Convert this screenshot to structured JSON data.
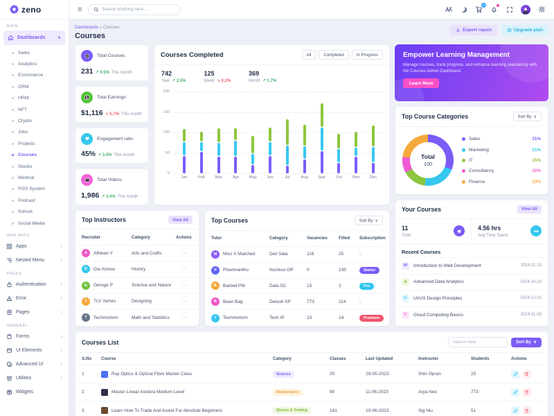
{
  "icons": {
    "trend_up": "↗",
    "trend_down": "↘",
    "chevron_down": "∨",
    "chevron_right": "›",
    "breadcrumb_sep": "»",
    "ellipsis": "⋯",
    "hamburger": "≡"
  },
  "colors": {
    "accent_purple": "#7b5bf5",
    "accent_cyan": "#35c7ee",
    "accent_green": "#8ec63f",
    "accent_pink": "#f05ad4",
    "accent_orange": "#f6a93b",
    "accent_red": "#f1556c",
    "trend_green": "#42b36a",
    "trend_red": "#ef5e6f",
    "cart_badge_blue": "#3aa0f5"
  },
  "brand": {
    "name": "zeno"
  },
  "header": {
    "search_placeholder": "Search anything here ...",
    "cart_badge": "5"
  },
  "page": {
    "breadcrumb_root": "Dashboards",
    "breadcrumb_current": "Courses",
    "title": "Courses",
    "export_button": "Export report",
    "upgrade_button": "Upgrade plan"
  },
  "sidebar": {
    "sections": {
      "main": "MAIN",
      "web_apps": "WEB APPS",
      "pages": "PAGES",
      "general": "GENERAL"
    },
    "dashboards": "Dashboards",
    "sub_items": [
      {
        "label": "Sales"
      },
      {
        "label": "Analytics"
      },
      {
        "label": "Ecommerce"
      },
      {
        "label": "CRM"
      },
      {
        "label": "HRM"
      },
      {
        "label": "NFT"
      },
      {
        "label": "Crypto"
      },
      {
        "label": "Jobs"
      },
      {
        "label": "Projects"
      },
      {
        "label": "Courses"
      },
      {
        "label": "Stocks"
      },
      {
        "label": "Medical"
      },
      {
        "label": "POS System"
      },
      {
        "label": "Podcast"
      },
      {
        "label": "School"
      },
      {
        "label": "Social Media"
      }
    ],
    "web_apps_items": [
      {
        "label": "Apps"
      },
      {
        "label": "Nested Menu"
      }
    ],
    "pages_items": [
      {
        "label": "Authentication"
      },
      {
        "label": "Error"
      },
      {
        "label": "Pages"
      }
    ],
    "general_items": [
      {
        "label": "Forms"
      },
      {
        "label": "UI Elements"
      },
      {
        "label": "Advanced UI"
      },
      {
        "label": "Utilities"
      },
      {
        "label": "Widgets"
      }
    ]
  },
  "stats": {
    "cards": [
      {
        "title": "Total Courses",
        "value": "231",
        "trend": "0.5%",
        "period": "This month",
        "color": "#7b5bf5"
      },
      {
        "title": "Total Earnings",
        "value": "$1,116",
        "trend": "5.7%",
        "period": "This month",
        "color": "#56c43c"
      },
      {
        "title": "Engagement ratio",
        "value": "45%",
        "trend": "3.5%",
        "period": "This month",
        "color": "#35c7ee"
      },
      {
        "title": "Total Videos",
        "value": "1,986",
        "trend": "3.4%",
        "period": "This month",
        "color": "#f261d7"
      }
    ]
  },
  "courses_completed": {
    "title": "Courses Completed",
    "filters": [
      "All",
      "Completed",
      "In Progress"
    ],
    "summary": [
      {
        "value": "742",
        "label": "Year",
        "trend": "2.5%"
      },
      {
        "value": "125",
        "label": "Week",
        "trend": "0.2%"
      },
      {
        "value": "369",
        "label": "Month",
        "trend": "1.7%"
      }
    ]
  },
  "banner": {
    "title": "Empower Learning Management",
    "text": "Manage courses, track progress, and enhance learning seamlessly with the Courses Admin Dashboard.",
    "button": "Learn More"
  },
  "top_categories": {
    "title": "Top Course Categories",
    "sort_button": "Sort By",
    "center_label": "Total",
    "center_value": "100",
    "legend": [
      {
        "label": "Sales",
        "pct": "31%",
        "color": "#7b5bf5"
      },
      {
        "label": "Marketing",
        "pct": "21%",
        "color": "#35c7ee"
      },
      {
        "label": "IT",
        "pct": "15%",
        "color": "#8ec63f"
      },
      {
        "label": "Consultancy",
        "pct": "10%",
        "color": "#f05ad4"
      },
      {
        "label": "Finance",
        "pct": "23%",
        "color": "#f6a93b"
      }
    ]
  },
  "your_courses": {
    "title": "Your Courses",
    "view_all": "View All",
    "total_value": "11",
    "total_label": "Total",
    "avg_value": "4.56 hrs",
    "avg_label": "Avg Time Spent",
    "recent_title": "Recent Courses",
    "recent": [
      {
        "initial": "W",
        "name": "Introduction to Web Development",
        "date": "2024-11-15",
        "bg": "#efeafe",
        "fg": "#7b5bf5"
      },
      {
        "initial": "A",
        "name": "Advanced Data Analytics",
        "date": "2024-10-20",
        "bg": "#edf7df",
        "fg": "#7fb927"
      },
      {
        "initial": "U",
        "name": "UI/UX Design Principles",
        "date": "2024-12-01",
        "bg": "#e1f6fd",
        "fg": "#2ec9f2"
      },
      {
        "initial": "C",
        "name": "Cloud Computing Basics",
        "date": "2024-11-05",
        "bg": "#fde9f9",
        "fg": "#ee56d4"
      }
    ]
  },
  "top_instructors": {
    "title": "Top Instructors",
    "view_all": "View All",
    "headers": [
      "Recruiter",
      "Category",
      "Actions"
    ],
    "rows": [
      {
        "initial": "A",
        "name": "Athlean Y",
        "category": "Arts and Crafts",
        "color": "#f058c8"
      },
      {
        "initial": "D",
        "name": "Dia Xclose",
        "category": "History",
        "color": "#35c7ee"
      },
      {
        "initial": "G",
        "name": "Geroge P",
        "category": "Science and Nature",
        "color": "#71c340"
      },
      {
        "initial": "T",
        "name": "TLV James",
        "category": "Designing",
        "color": "#f6a93b"
      },
      {
        "initial": "T",
        "name": "Techmortom",
        "category": "Math and Statistics",
        "color": "#64748b"
      }
    ]
  },
  "top_courses": {
    "title": "Top Courses",
    "sort_button": "Sort By",
    "headers": [
      "Tutor",
      "Category",
      "Vacancies",
      "Filled",
      "Subscription"
    ],
    "rows": [
      {
        "initial": "M",
        "tutor": "Miss X Matched",
        "category": "Deil Sata",
        "vacancies": "116",
        "filled": "25",
        "subscription": "-",
        "color": "#8b5cf6"
      },
      {
        "initial": "P",
        "tutor": "Phanmanthu",
        "category": "Nucleus OP",
        "vacancies": "0",
        "filled": "235",
        "subscription": "Starter",
        "color": "#6366f1"
      },
      {
        "initial": "B",
        "tutor": "Barbell PM",
        "category": "Data SC",
        "vacancies": "15",
        "filled": "2",
        "subscription": "Pro",
        "color": "#f6a93b"
      },
      {
        "initial": "B",
        "tutor": "Bean Bag",
        "category": "Delooit XP",
        "vacancies": "773",
        "filled": "114",
        "subscription": "-",
        "color": "#f058c8"
      },
      {
        "initial": "T",
        "tutor": "Techmortom",
        "category": "Tech IP",
        "vacancies": "23",
        "filled": "14",
        "subscription": "Premium",
        "color": "#35c7ee"
      }
    ]
  },
  "courses_list": {
    "title": "Courses List",
    "search_placeholder": "Search Here",
    "sort_button": "Sort By",
    "headers": [
      "S.No",
      "Course",
      "Category",
      "Classes",
      "Last Updated",
      "Instructor",
      "Students",
      "Actions"
    ],
    "rows": [
      {
        "sno": "1",
        "course": "Ray Optics & Optical Fibre Master Class",
        "category": "Science",
        "cat_bg": "#efeafe",
        "cat_fg": "#7b5bf5",
        "classes": "20",
        "updated": "29-05-2023",
        "instructor": "Shin Opran",
        "students": "25",
        "thumb": "#4f6ef7"
      },
      {
        "sno": "2",
        "course": "Master Linear Alzebra Medium Level",
        "category": "Mathematics",
        "cat_bg": "#fdf3df",
        "cat_fg": "#e9a23b",
        "classes": "90",
        "updated": "11-06-2023",
        "instructor": "Arya Neo",
        "students": "773",
        "thumb": "#33304a"
      },
      {
        "sno": "3",
        "course": "Learn How To Trade And Invest For Absolute Beginners",
        "category": "Stocks & Trading",
        "cat_bg": "#eef7e0",
        "cat_fg": "#7fb927",
        "classes": "161",
        "updated": "10-06-2023",
        "instructor": "Sig Niu",
        "students": "51",
        "thumb": "#6b4a2f"
      }
    ]
  },
  "chart_data": [
    {
      "type": "bar",
      "stacked": true,
      "title": "Courses Completed",
      "categories": [
        "Jan",
        "Feb",
        "Mar",
        "Apr",
        "May",
        "Jun",
        "Jul",
        "Aug",
        "Sep",
        "Oct",
        "Nov",
        "Dec"
      ],
      "series": [
        {
          "color": "#7c5cfc",
          "values": [
            43,
            53,
            40,
            41,
            21,
            42,
            19,
            34,
            54,
            26,
            41,
            26
          ]
        },
        {
          "color": "#38c8f1",
          "values": [
            32,
            22,
            33,
            37,
            25,
            32,
            48,
            31,
            56,
            32,
            21,
            37
          ]
        },
        {
          "color": "#8ec63f",
          "values": [
            30,
            23,
            34,
            29,
            42,
            34,
            63,
            50,
            57,
            35,
            38,
            51
          ]
        }
      ],
      "ylim": [
        0,
        200
      ],
      "yticks": [
        0,
        50,
        100,
        150,
        200
      ],
      "grid": true,
      "legend_position": "none"
    },
    {
      "type": "pie",
      "title": "Top Course Categories",
      "labels": [
        "Sales",
        "Marketing",
        "IT",
        "Consultancy",
        "Finance"
      ],
      "values": [
        31,
        21,
        15,
        10,
        23
      ],
      "colors": [
        "#7b5bf5",
        "#35c7ee",
        "#8ec63f",
        "#f05ad4",
        "#f6a93b"
      ],
      "center_label": "Total",
      "center_value": "100",
      "unit": "%"
    }
  ]
}
